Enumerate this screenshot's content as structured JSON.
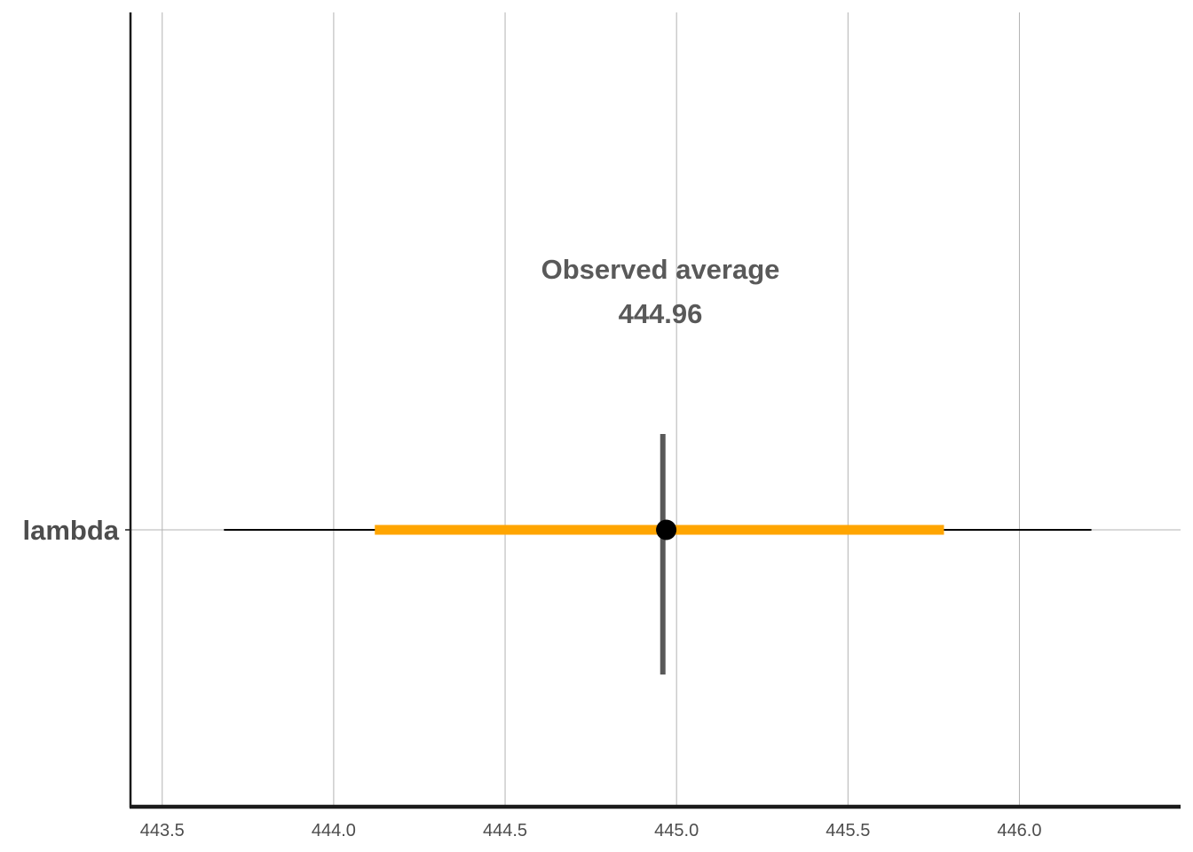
{
  "chart_data": {
    "type": "interval",
    "title": "",
    "xlabel": "",
    "ylabel": "",
    "xlim": [
      443.41,
      446.47
    ],
    "x_ticks": [
      443.5,
      444.0,
      444.5,
      445.0,
      445.5,
      446.0
    ],
    "x_tick_labels": [
      "443.5",
      "444.0",
      "444.5",
      "445.0",
      "445.5",
      "446.0"
    ],
    "grid": "vertical",
    "categories": [
      "lambda"
    ],
    "series": [
      {
        "category": "lambda",
        "point": 444.97,
        "inner_interval": [
          444.12,
          445.78
        ],
        "outer_interval": [
          443.68,
          446.21
        ]
      }
    ],
    "reference_line": {
      "x": 444.96,
      "label": "Observed average",
      "value_label": "444.96"
    },
    "colors": {
      "inner_interval": "#ffa500",
      "outer_interval": "#000000",
      "point": "#000000",
      "reference_line": "#595959",
      "grid": "#b3b3b3",
      "axis": "#1a1a1a",
      "text": "#4d4d4d"
    }
  }
}
